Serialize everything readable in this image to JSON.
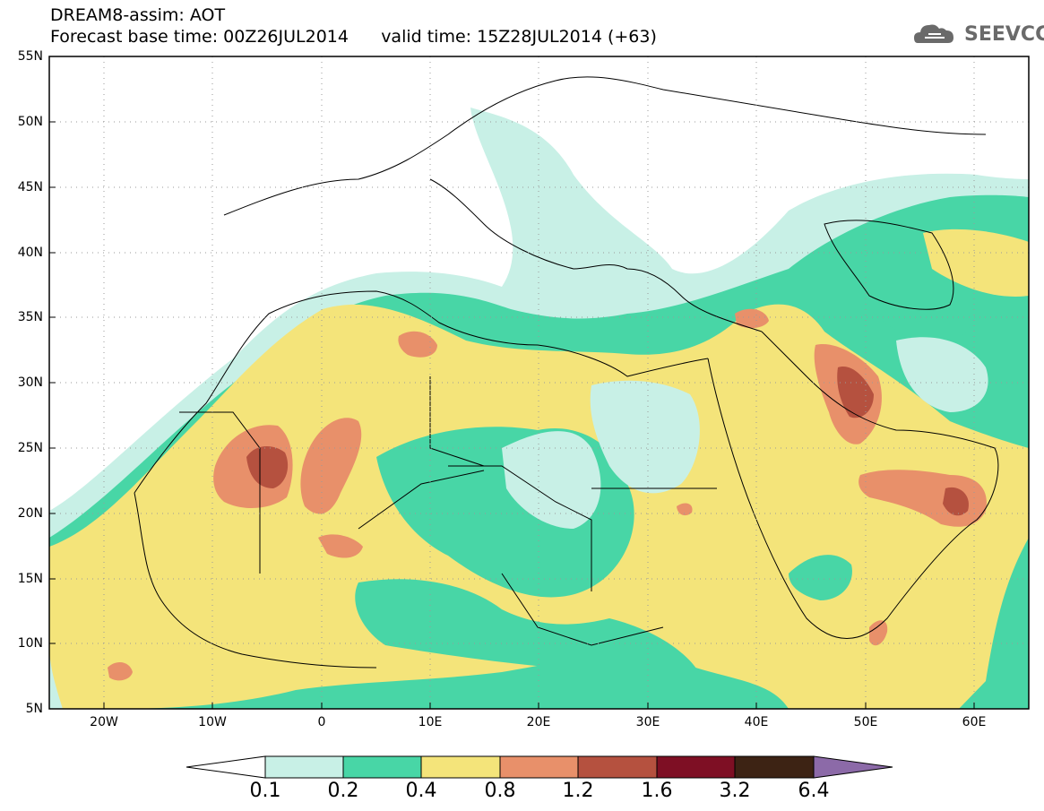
{
  "header": {
    "line1": "DREAM8-assim: AOT",
    "line2": "Forecast base time: 00Z26JUL2014      valid time: 15Z28JUL2014 (+63)"
  },
  "logo": {
    "text": "SEEVCCC",
    "icon": "cloud-icon"
  },
  "map": {
    "lat_range": [
      5,
      55
    ],
    "lon_range": [
      -25,
      65
    ],
    "lat_ticks": [
      "55N",
      "50N",
      "45N",
      "40N",
      "35N",
      "30N",
      "25N",
      "20N",
      "15N",
      "10N",
      "5N"
    ],
    "lon_ticks": [
      "20W",
      "10W",
      "0",
      "10E",
      "20E",
      "30E",
      "40E",
      "50E",
      "60E"
    ],
    "grid": true,
    "field": "AOT"
  },
  "colorbar": {
    "labels": [
      "0.1",
      "0.2",
      "0.4",
      "0.8",
      "1.2",
      "1.6",
      "3.2",
      "6.4"
    ],
    "colors": [
      "#c8f0e6",
      "#48d6a6",
      "#f4e47a",
      "#e8906a",
      "#b5513f",
      "#7e0f24",
      "#3d2314"
    ],
    "under_color": "#ffffff",
    "over_color": "#8c6aa8"
  },
  "colors": {
    "c1": "#c8f0e6",
    "c2": "#48d6a6",
    "c3": "#f4e47a",
    "c4": "#e8906a",
    "c5": "#b5513f"
  }
}
